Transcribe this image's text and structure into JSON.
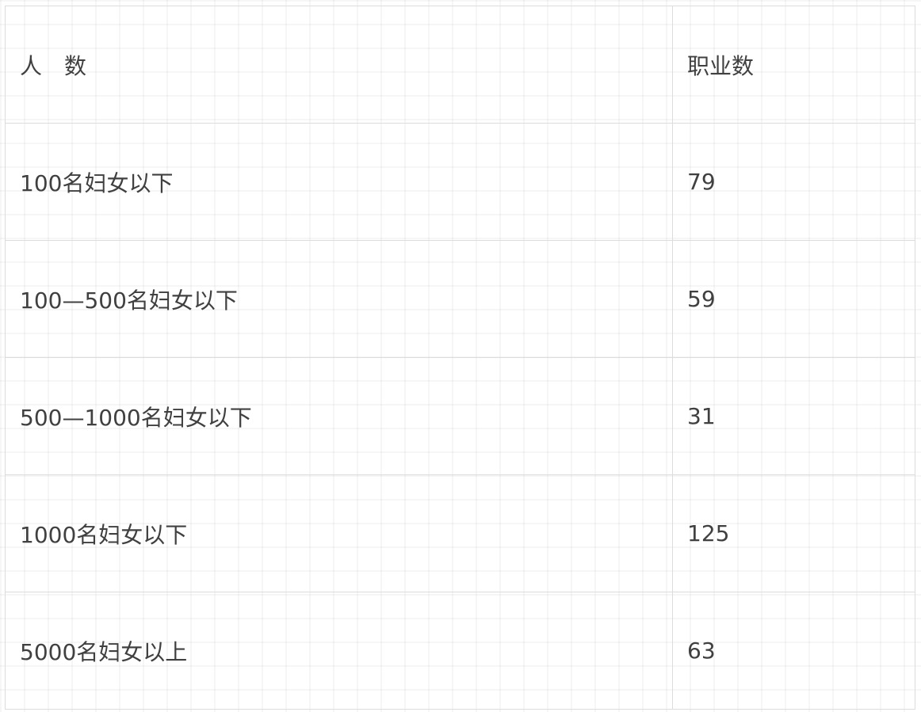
{
  "table": {
    "headers": [
      "人　数",
      "职业数"
    ],
    "rows": [
      [
        "100名妇女以下",
        "79"
      ],
      [
        "100—500名妇女以下",
        "59"
      ],
      [
        "500—1000名妇女以下",
        "31"
      ],
      [
        "1000名妇女以下",
        "125"
      ],
      [
        "5000名妇女以上",
        "63"
      ]
    ]
  }
}
